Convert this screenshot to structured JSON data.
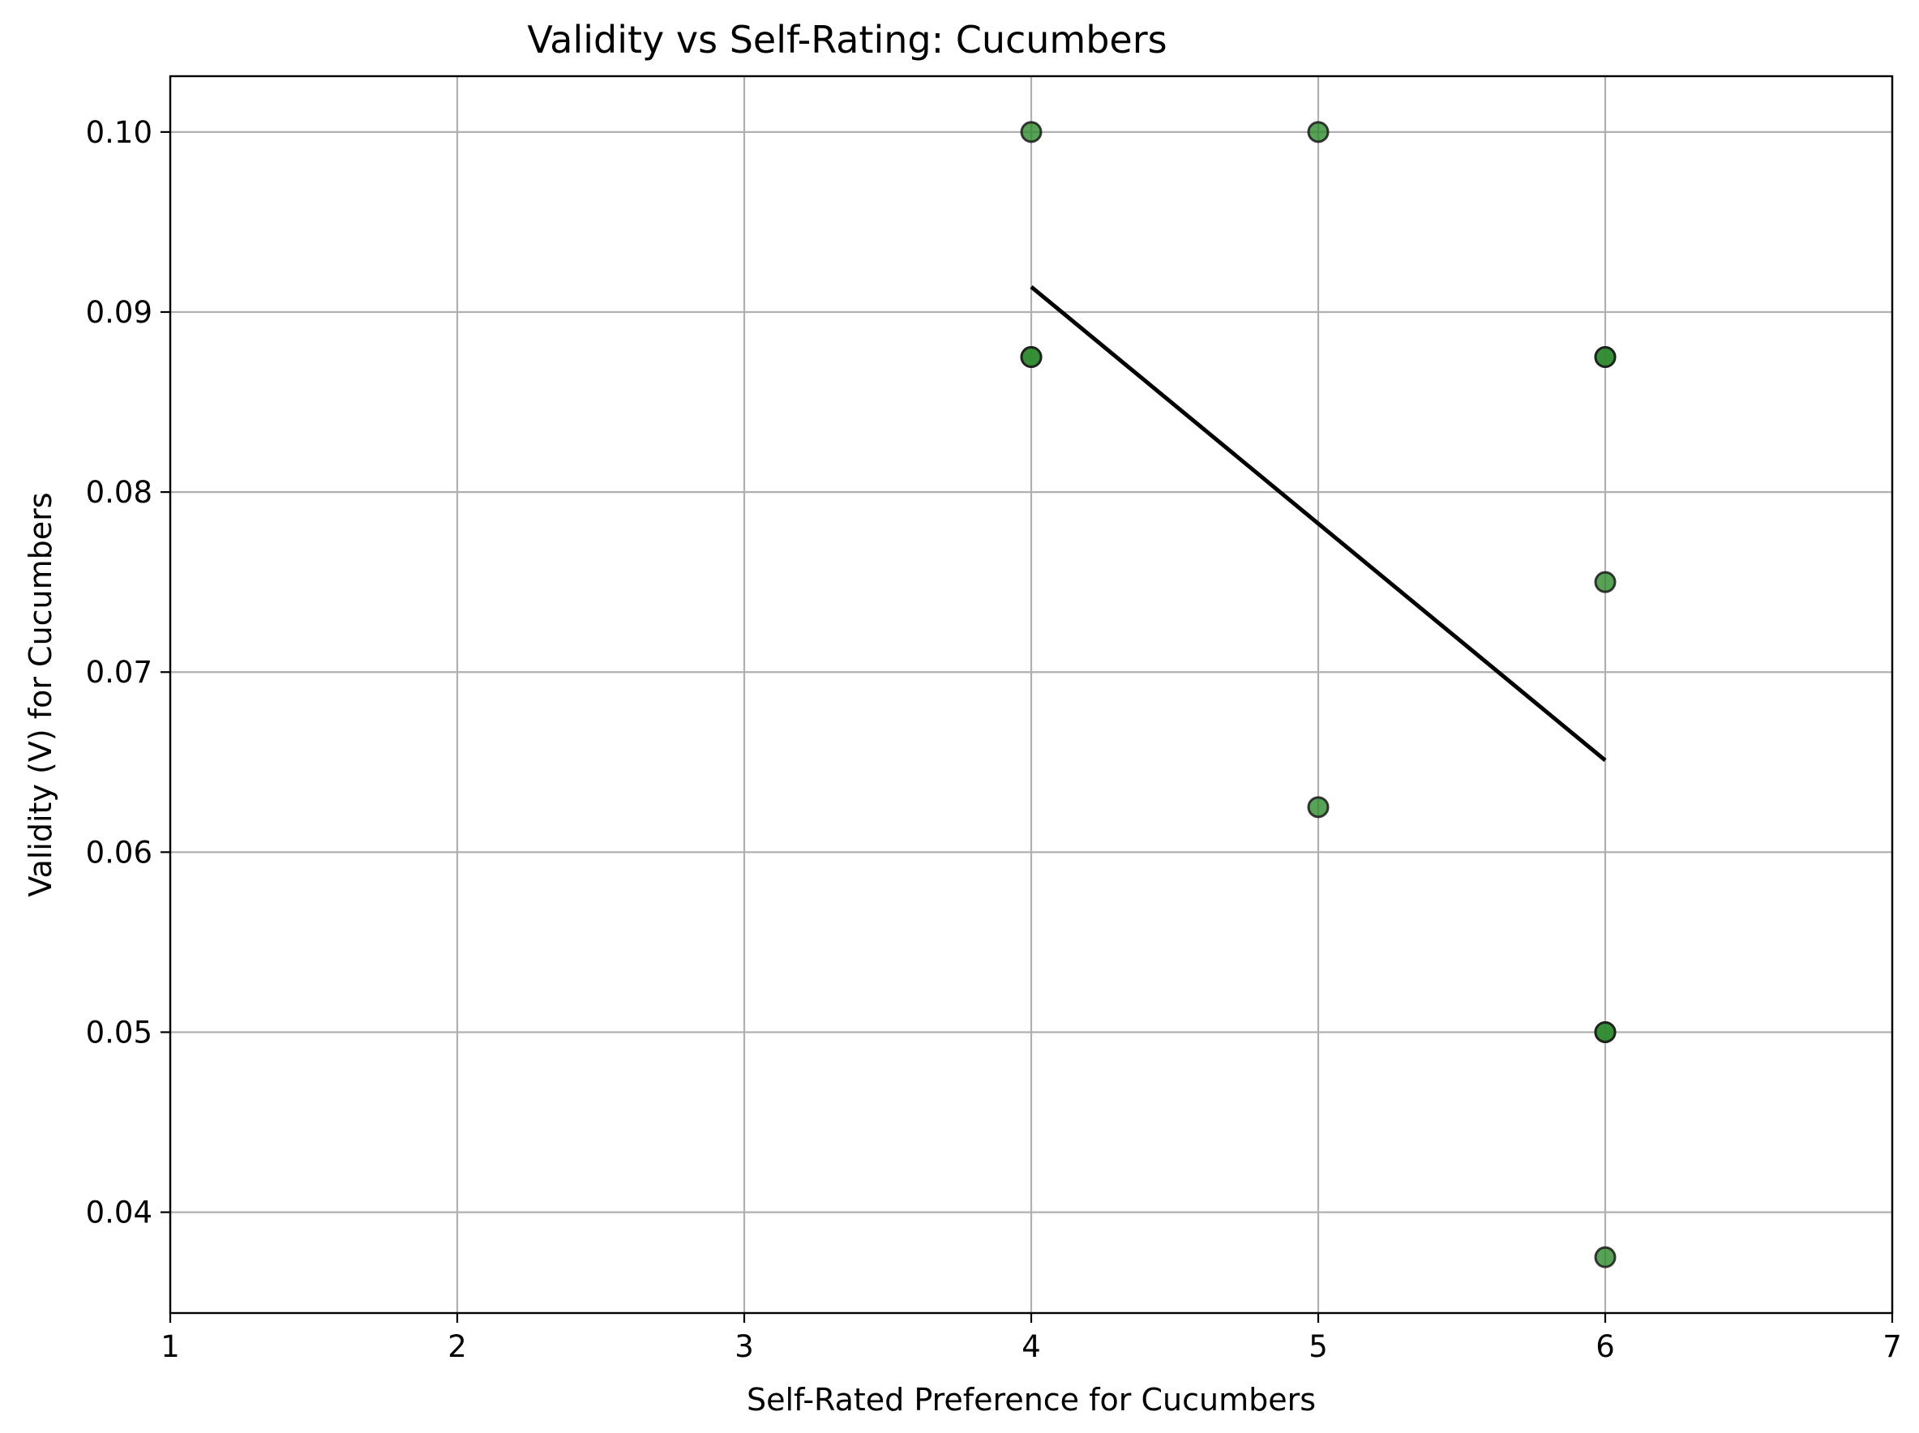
{
  "chart_data": {
    "type": "scatter",
    "title": "Validity vs Self-Rating: Cucumbers",
    "xlabel": "Self-Rated Preference for Cucumbers",
    "ylabel": "Validity (V) for Cucumbers",
    "xlim": [
      1,
      7
    ],
    "ylim": [
      0.0344,
      0.1031
    ],
    "x_ticks": [
      1,
      2,
      3,
      4,
      5,
      6,
      7
    ],
    "x_tick_labels": [
      "1",
      "2",
      "3",
      "4",
      "5",
      "6",
      "7"
    ],
    "y_ticks": [
      0.04,
      0.05,
      0.06,
      0.07,
      0.08,
      0.09,
      0.1
    ],
    "y_tick_labels": [
      "0.04",
      "0.05",
      "0.06",
      "0.07",
      "0.08",
      "0.09",
      "0.10"
    ],
    "grid": true,
    "legend": "none",
    "points": [
      {
        "x": 4,
        "y": 0.1
      },
      {
        "x": 4,
        "y": 0.0875
      },
      {
        "x": 4,
        "y": 0.0875
      },
      {
        "x": 5,
        "y": 0.1
      },
      {
        "x": 5,
        "y": 0.0625
      },
      {
        "x": 6,
        "y": 0.0875
      },
      {
        "x": 6,
        "y": 0.0875
      },
      {
        "x": 6,
        "y": 0.075
      },
      {
        "x": 6,
        "y": 0.05
      },
      {
        "x": 6,
        "y": 0.05
      },
      {
        "x": 6,
        "y": 0.0375
      }
    ],
    "trend_line": {
      "x": [
        4,
        6
      ],
      "y": [
        0.0914,
        0.0651
      ]
    },
    "colors": {
      "point_fill": "#2e8b2e",
      "point_edge": "#1a1a1a",
      "trend_line": "#000000",
      "grid": "#b0b0b0"
    }
  }
}
